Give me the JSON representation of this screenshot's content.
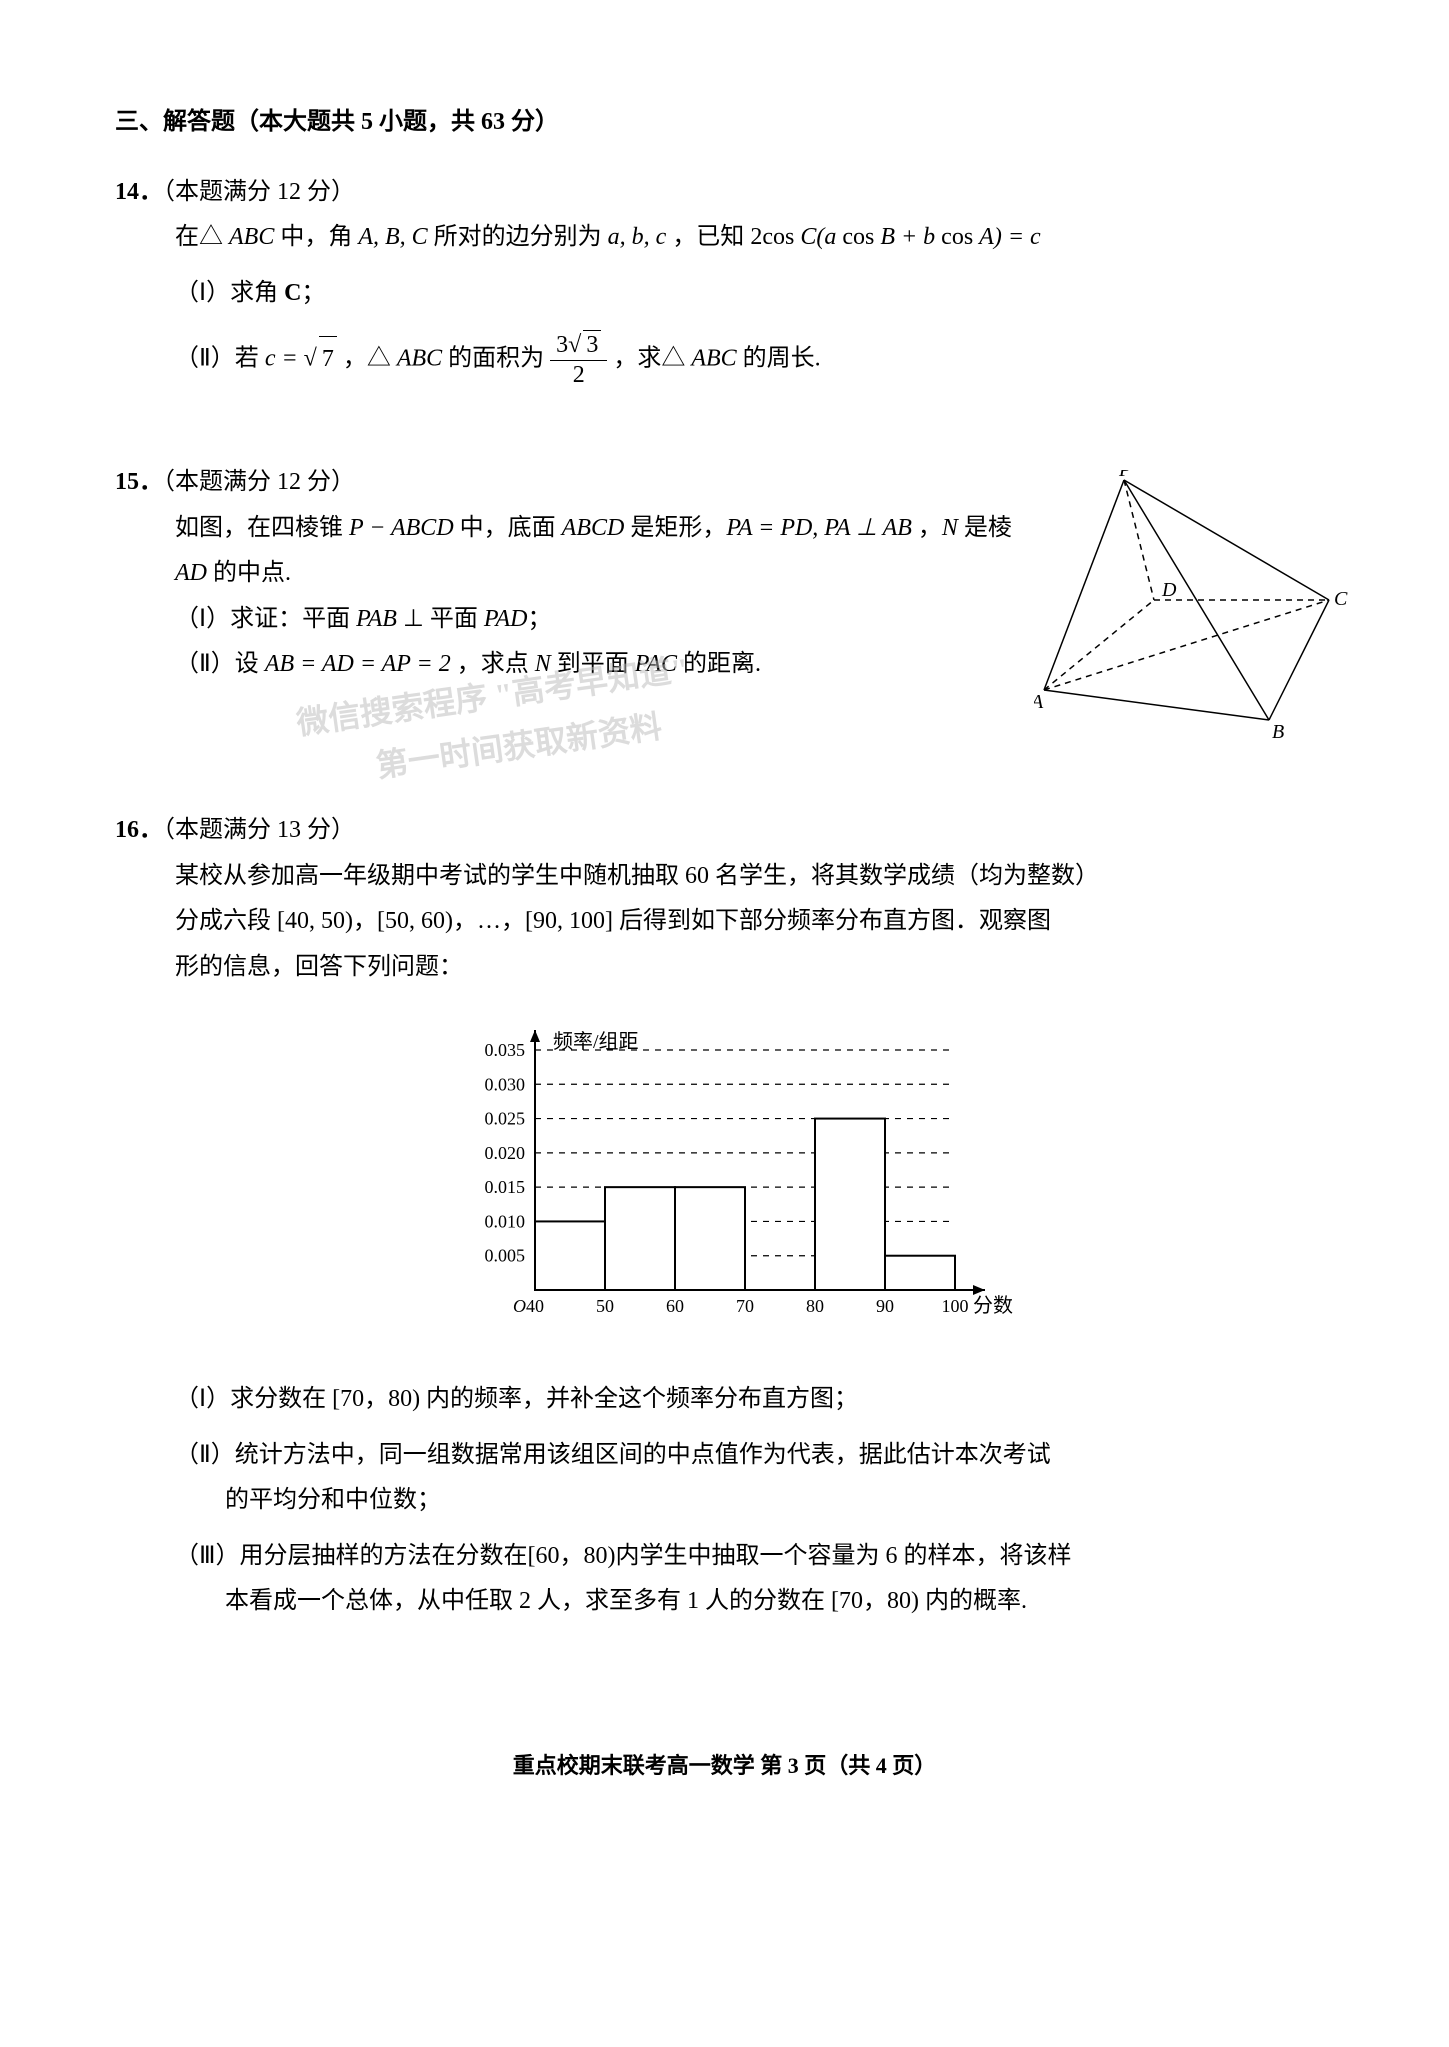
{
  "section_header": "三、解答题（本大题共 5 小题，共 63 分）",
  "p14": {
    "num": "14．",
    "points": "（本题满分 12 分）",
    "body": "在△ ",
    "body_abc": "ABC",
    "body2": " 中，角 ",
    "body_angles": "A, B, C",
    "body3": " 所对的边分别为 ",
    "body_sides": "a, b, c",
    "body4": " ，已知 ",
    "body_eq1": "2cos C",
    "body_eq2": "(a cos B + b cos A) = c",
    "part1_label": "（Ⅰ）求角 ",
    "part1_C": "C",
    "part1_semi": "；",
    "part2_label": "（Ⅱ）若 ",
    "part2_c": "c = ",
    "part2_sqrt7": "7",
    "part2_mid": " ，△ ",
    "part2_abc": "ABC",
    "part2_area": " 的面积为 ",
    "frac_num": "3√3",
    "frac_den": "2",
    "part2_end": " ，求△ ",
    "part2_abc2": "ABC",
    "part2_perim": " 的周长."
  },
  "p15": {
    "num": "15．",
    "points": "（本题满分 12 分）",
    "line1a": "如图，在四棱锥 ",
    "line1_p": "P − ABCD",
    "line1b": " 中，底面 ",
    "line1_abcd": "ABCD",
    "line1c": " 是矩形，",
    "line1_eq": "PA = PD, PA ⊥ AB",
    "line1d": " ，",
    "line1_N": "N",
    "line1e": " 是棱",
    "line2a": "AD",
    "line2b": " 的中点.",
    "part1": "（Ⅰ）求证：平面 ",
    "part1_pab": "PAB",
    "part1_perp": " ⊥ 平面 ",
    "part1_pad": "PAD",
    "part1_semi": "；",
    "part2": "（Ⅱ）设 ",
    "part2_eq": "AB = AD = AP = 2",
    "part2_mid": " ，求点 ",
    "part2_N": "N",
    "part2_end": " 到平面 ",
    "part2_pac": "PAC",
    "part2_dist": " 的距离.",
    "figure": {
      "labels": {
        "P": "P",
        "A": "A",
        "B": "B",
        "C": "C",
        "D": "D"
      },
      "stroke": "#000000",
      "points": {
        "P": [
          90,
          0
        ],
        "A": [
          10,
          220
        ],
        "B": [
          235,
          250
        ],
        "D": [
          120,
          130
        ],
        "C": [
          295,
          130
        ]
      }
    }
  },
  "p16": {
    "num": "16．",
    "points": "（本题满分 13 分）",
    "body1": "某校从参加高一年级期中考试的学生中随机抽取 60 名学生，将其数学成绩（均为整数）",
    "body2": "分成六段 [40, 50)，[50, 60)，…，[90, 100] 后得到如下部分频率分布直方图．观察图",
    "body3": "形的信息，回答下列问题：",
    "chart": {
      "type": "histogram",
      "ylabel": "频率/组距",
      "xlabel": "分数",
      "yticks": [
        0.005,
        0.01,
        0.015,
        0.02,
        0.025,
        0.03,
        0.035
      ],
      "xticks": [
        40,
        50,
        60,
        70,
        80,
        90,
        100
      ],
      "bars": [
        {
          "x0": 40,
          "x1": 50,
          "h": 0.01
        },
        {
          "x0": 50,
          "x1": 60,
          "h": 0.015
        },
        {
          "x0": 60,
          "x1": 70,
          "h": 0.015
        },
        {
          "x0": 80,
          "x1": 90,
          "h": 0.025
        },
        {
          "x0": 90,
          "x1": 100,
          "h": 0.005
        }
      ],
      "axis_color": "#000000",
      "grid_color": "#000000",
      "bar_fill": "#ffffff",
      "bar_stroke": "#000000",
      "background": "#ffffff"
    },
    "part1": "（Ⅰ）求分数在 [70，80) 内的频率，并补全这个频率分布直方图；",
    "part2a": "（Ⅱ）统计方法中，同一组数据常用该组区间的中点值作为代表，据此估计本次考试",
    "part2b": "的平均分和中位数；",
    "part3a": "（Ⅲ）用分层抽样的方法在分数在[60，80)内学生中抽取一个容量为 6 的样本，将该样",
    "part3b": "本看成一个总体，从中任取 2 人，求至多有 1 人的分数在 [70，80) 内的概率."
  },
  "watermark": {
    "line1": "微信搜索程序  \"高考早知道\"",
    "line2": "第一时间获取新资料"
  },
  "footer": "重点校期末联考高一数学   第 3 页（共 4 页）"
}
